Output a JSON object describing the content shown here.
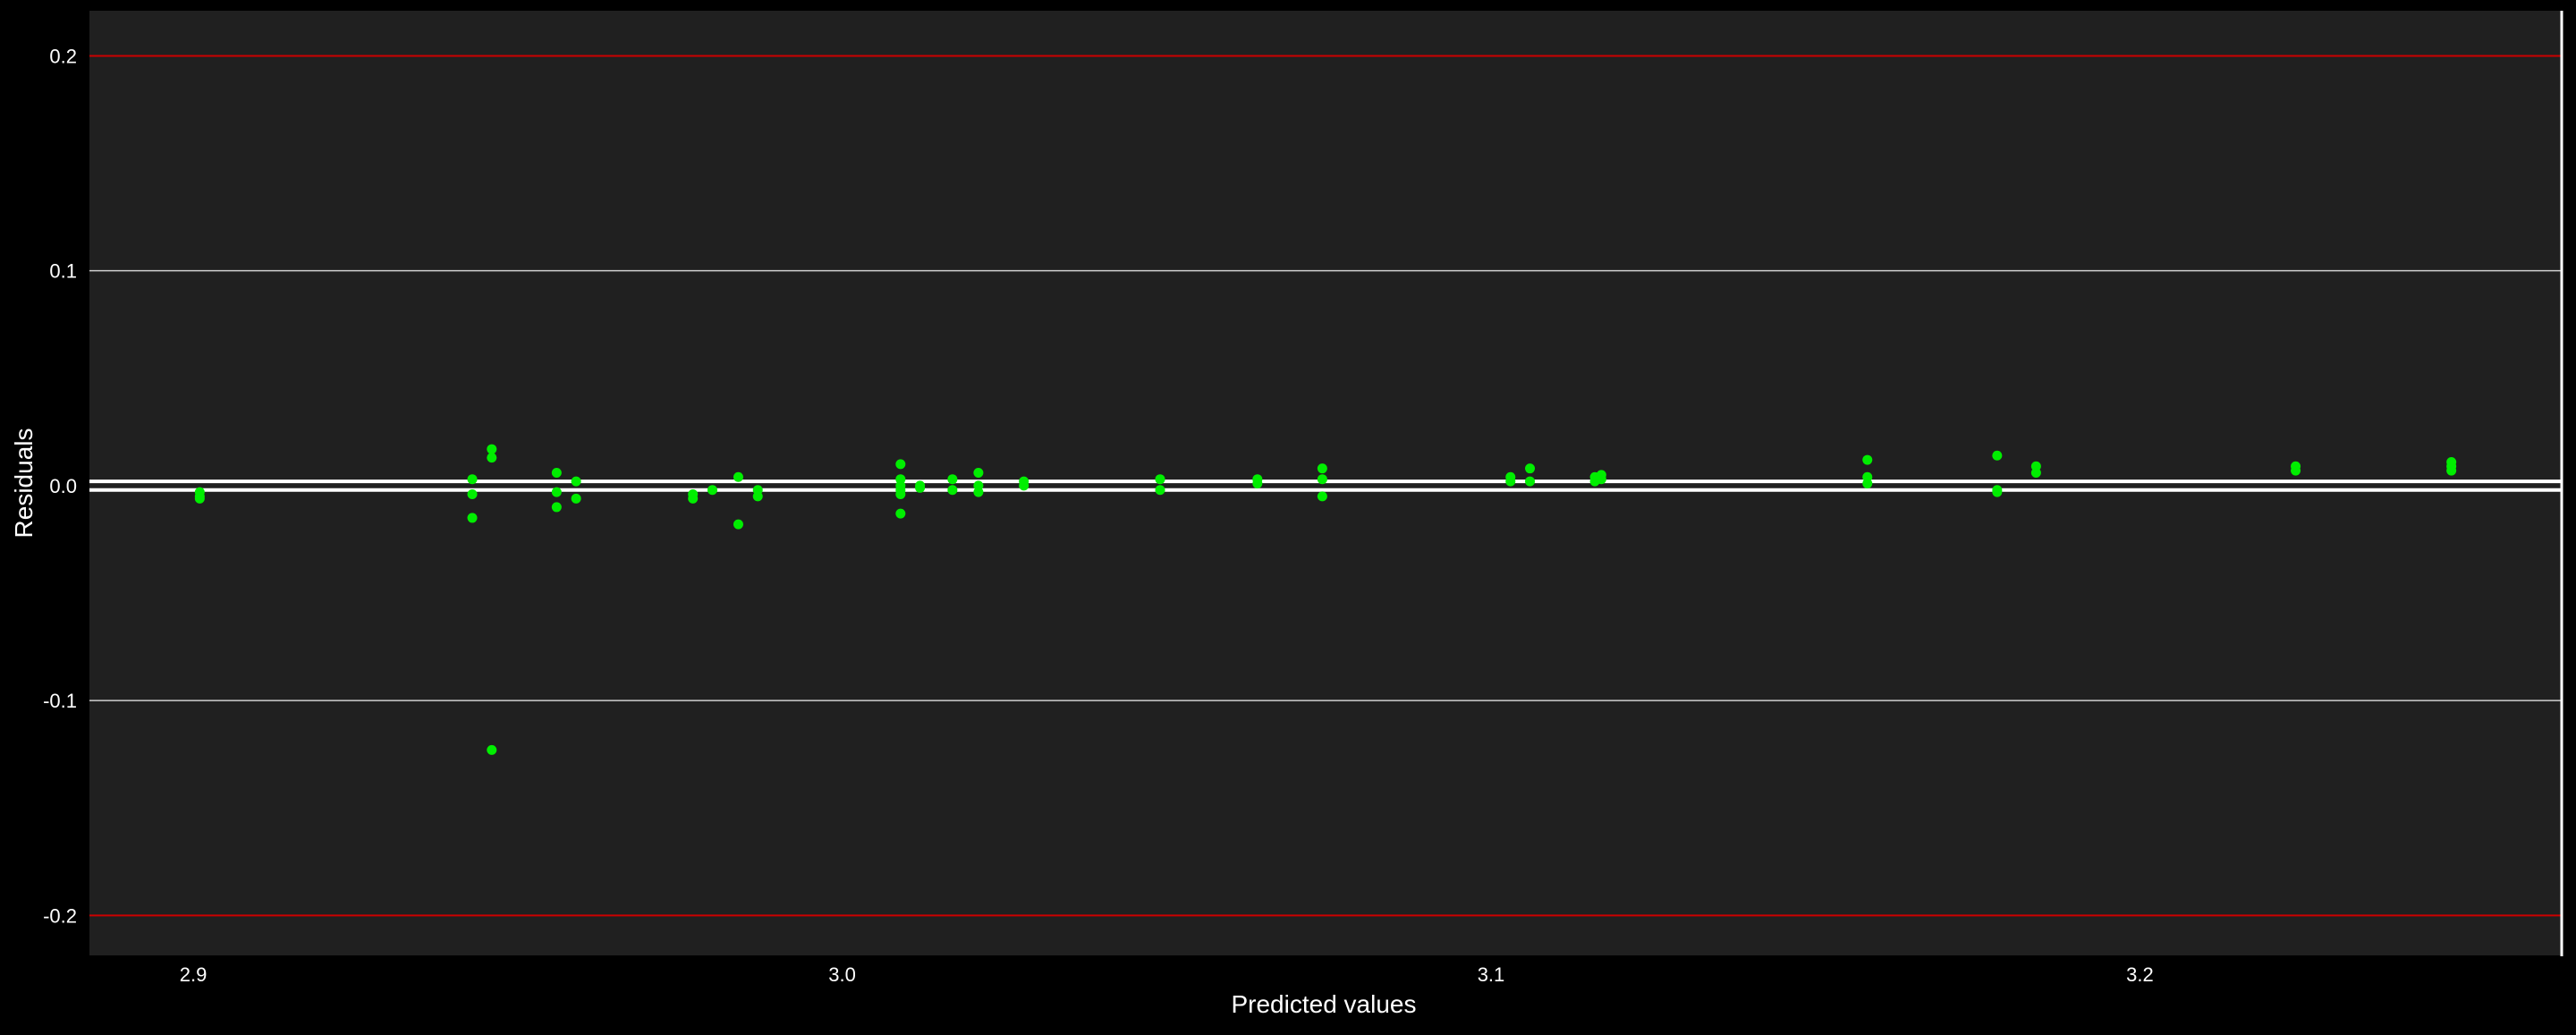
{
  "chart_data": {
    "type": "scatter",
    "title": "",
    "xlabel": "Predicted values",
    "ylabel": "Residuals",
    "xlim": [
      2.884,
      3.265
    ],
    "ylim": [
      -0.219,
      0.221
    ],
    "x_ticks": [
      2.9,
      3.0,
      3.1,
      3.2
    ],
    "x_tick_labels": [
      "2.9",
      "3.0",
      "3.1",
      "3.2"
    ],
    "y_ticks": [
      -0.2,
      -0.1,
      0.0,
      0.1,
      0.2
    ],
    "y_tick_labels": [
      "-0.2",
      "-0.1",
      "0.0",
      "0.1",
      "0.2"
    ],
    "grid": true,
    "reference_lines": {
      "limit_values": [
        0.2,
        -0.2
      ],
      "limit_color": "#cc0000",
      "center_band": [
        -0.002,
        0.002
      ],
      "center_color": "#ffffff"
    },
    "colors": {
      "background": "#000000",
      "panel": "#202020",
      "grid": "#cfcfcf",
      "points": "#00ee00",
      "text": "#ffffff"
    },
    "points": [
      {
        "x": 2.901,
        "y": -0.003
      },
      {
        "x": 2.901,
        "y": -0.005
      },
      {
        "x": 2.901,
        "y": -0.006
      },
      {
        "x": 2.943,
        "y": 0.003
      },
      {
        "x": 2.943,
        "y": -0.004
      },
      {
        "x": 2.943,
        "y": -0.015
      },
      {
        "x": 2.946,
        "y": 0.017
      },
      {
        "x": 2.946,
        "y": 0.013
      },
      {
        "x": 2.946,
        "y": -0.123
      },
      {
        "x": 2.956,
        "y": 0.006
      },
      {
        "x": 2.956,
        "y": -0.003
      },
      {
        "x": 2.956,
        "y": -0.01
      },
      {
        "x": 2.959,
        "y": 0.002
      },
      {
        "x": 2.959,
        "y": -0.006
      },
      {
        "x": 2.977,
        "y": -0.004
      },
      {
        "x": 2.977,
        "y": -0.006
      },
      {
        "x": 2.98,
        "y": -0.002
      },
      {
        "x": 2.984,
        "y": 0.004
      },
      {
        "x": 2.984,
        "y": -0.018
      },
      {
        "x": 2.987,
        "y": -0.002
      },
      {
        "x": 2.987,
        "y": -0.005
      },
      {
        "x": 3.009,
        "y": 0.01
      },
      {
        "x": 3.009,
        "y": 0.003
      },
      {
        "x": 3.009,
        "y": 0.0
      },
      {
        "x": 3.009,
        "y": -0.002
      },
      {
        "x": 3.009,
        "y": -0.004
      },
      {
        "x": 3.009,
        "y": -0.013
      },
      {
        "x": 3.012,
        "y": 0.0
      },
      {
        "x": 3.012,
        "y": -0.001
      },
      {
        "x": 3.017,
        "y": 0.003
      },
      {
        "x": 3.017,
        "y": -0.002
      },
      {
        "x": 3.021,
        "y": 0.006
      },
      {
        "x": 3.021,
        "y": 0.0
      },
      {
        "x": 3.021,
        "y": -0.003
      },
      {
        "x": 3.028,
        "y": 0.002
      },
      {
        "x": 3.028,
        "y": 0.0
      },
      {
        "x": 3.049,
        "y": 0.003
      },
      {
        "x": 3.049,
        "y": -0.002
      },
      {
        "x": 3.064,
        "y": 0.003
      },
      {
        "x": 3.064,
        "y": 0.001
      },
      {
        "x": 3.074,
        "y": 0.008
      },
      {
        "x": 3.074,
        "y": 0.003
      },
      {
        "x": 3.074,
        "y": -0.005
      },
      {
        "x": 3.103,
        "y": 0.004
      },
      {
        "x": 3.103,
        "y": 0.002
      },
      {
        "x": 3.106,
        "y": 0.008
      },
      {
        "x": 3.106,
        "y": 0.002
      },
      {
        "x": 3.116,
        "y": 0.004
      },
      {
        "x": 3.116,
        "y": 0.002
      },
      {
        "x": 3.117,
        "y": 0.005
      },
      {
        "x": 3.117,
        "y": 0.003
      },
      {
        "x": 3.158,
        "y": 0.012
      },
      {
        "x": 3.158,
        "y": 0.004
      },
      {
        "x": 3.158,
        "y": 0.001
      },
      {
        "x": 3.178,
        "y": 0.014
      },
      {
        "x": 3.178,
        "y": -0.002
      },
      {
        "x": 3.178,
        "y": -0.003
      },
      {
        "x": 3.184,
        "y": 0.009
      },
      {
        "x": 3.184,
        "y": 0.006
      },
      {
        "x": 3.224,
        "y": 0.009
      },
      {
        "x": 3.224,
        "y": 0.007
      },
      {
        "x": 3.248,
        "y": 0.011
      },
      {
        "x": 3.248,
        "y": 0.009
      },
      {
        "x": 3.248,
        "y": 0.007
      }
    ]
  }
}
